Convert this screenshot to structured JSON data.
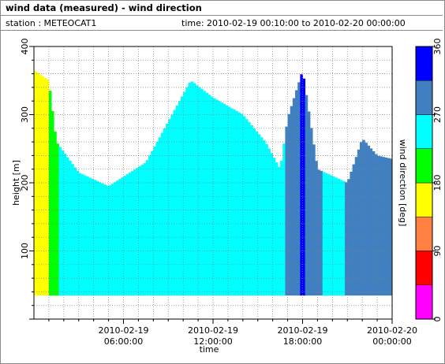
{
  "header": {
    "title": "wind data (measured) - wind direction",
    "station": "station : METEOCAT1",
    "time_range": "time: 2010-02-19 00:10:00 to 2010-02-20 00:00:00"
  },
  "chart_data": {
    "type": "heatmap",
    "xlabel": "time",
    "ylabel": "height [m]",
    "colorbar_label": "wind direction [deg]",
    "x_range_hours": [
      0,
      24
    ],
    "ylim": [
      0,
      400
    ],
    "y_ticks": [
      100,
      200,
      300,
      400
    ],
    "x_ticks": [
      {
        "hour": 6,
        "line1": "2010-02-19",
        "line2": "06:00:00"
      },
      {
        "hour": 12,
        "line1": "2010-02-19",
        "line2": "12:00:00"
      },
      {
        "hour": 18,
        "line1": "2010-02-19",
        "line2": "18:00:00"
      },
      {
        "hour": 24,
        "line1": "2010-02-20",
        "line2": "00:00:00"
      }
    ],
    "grid": true,
    "colorbar": {
      "ticks": [
        0,
        90,
        180,
        270,
        360
      ],
      "bins": [
        {
          "from": 0,
          "to": 45,
          "color": "#ff00ff"
        },
        {
          "from": 45,
          "to": 90,
          "color": "#ff0000"
        },
        {
          "from": 90,
          "to": 135,
          "color": "#ff8040"
        },
        {
          "from": 135,
          "to": 180,
          "color": "#ffff00"
        },
        {
          "from": 180,
          "to": 225,
          "color": "#00ff00"
        },
        {
          "from": 225,
          "to": 270,
          "color": "#00ffff"
        },
        {
          "from": 270,
          "to": 315,
          "color": "#4080c0"
        },
        {
          "from": 315,
          "to": 360,
          "color": "#0000ff"
        }
      ]
    },
    "data_range_height_m": [
      35,
      365
    ],
    "approx_profile_tops_m": [
      {
        "hour": 0.0,
        "top": 365
      },
      {
        "hour": 1.0,
        "top": 350
      },
      {
        "hour": 1.5,
        "top": 260
      },
      {
        "hour": 3.0,
        "top": 215
      },
      {
        "hour": 5.0,
        "top": 195
      },
      {
        "hour": 7.5,
        "top": 230
      },
      {
        "hour": 9.5,
        "top": 310
      },
      {
        "hour": 10.5,
        "top": 350
      },
      {
        "hour": 12.0,
        "top": 325
      },
      {
        "hour": 14.0,
        "top": 300
      },
      {
        "hour": 15.5,
        "top": 260
      },
      {
        "hour": 16.5,
        "top": 220
      },
      {
        "hour": 17.0,
        "top": 295
      },
      {
        "hour": 18.0,
        "top": 365
      },
      {
        "hour": 19.0,
        "top": 220
      },
      {
        "hour": 21.0,
        "top": 200
      },
      {
        "hour": 22.0,
        "top": 265
      },
      {
        "hour": 23.0,
        "top": 240
      },
      {
        "hour": 24.0,
        "top": 235
      }
    ],
    "approx_dominant_direction_deg": [
      {
        "from_hour": 0.0,
        "to_hour": 1.0,
        "direction": 160
      },
      {
        "from_hour": 1.0,
        "to_hour": 1.6,
        "direction": 200
      },
      {
        "from_hour": 1.6,
        "to_hour": 16.9,
        "direction": 250
      },
      {
        "from_hour": 16.9,
        "to_hour": 17.8,
        "direction": 300
      },
      {
        "from_hour": 17.8,
        "to_hour": 18.1,
        "direction": 320
      },
      {
        "from_hour": 18.1,
        "to_hour": 19.3,
        "direction": 290
      },
      {
        "from_hour": 19.3,
        "to_hour": 20.8,
        "direction": 250
      },
      {
        "from_hour": 20.8,
        "to_hour": 24.0,
        "direction": 290
      }
    ]
  }
}
